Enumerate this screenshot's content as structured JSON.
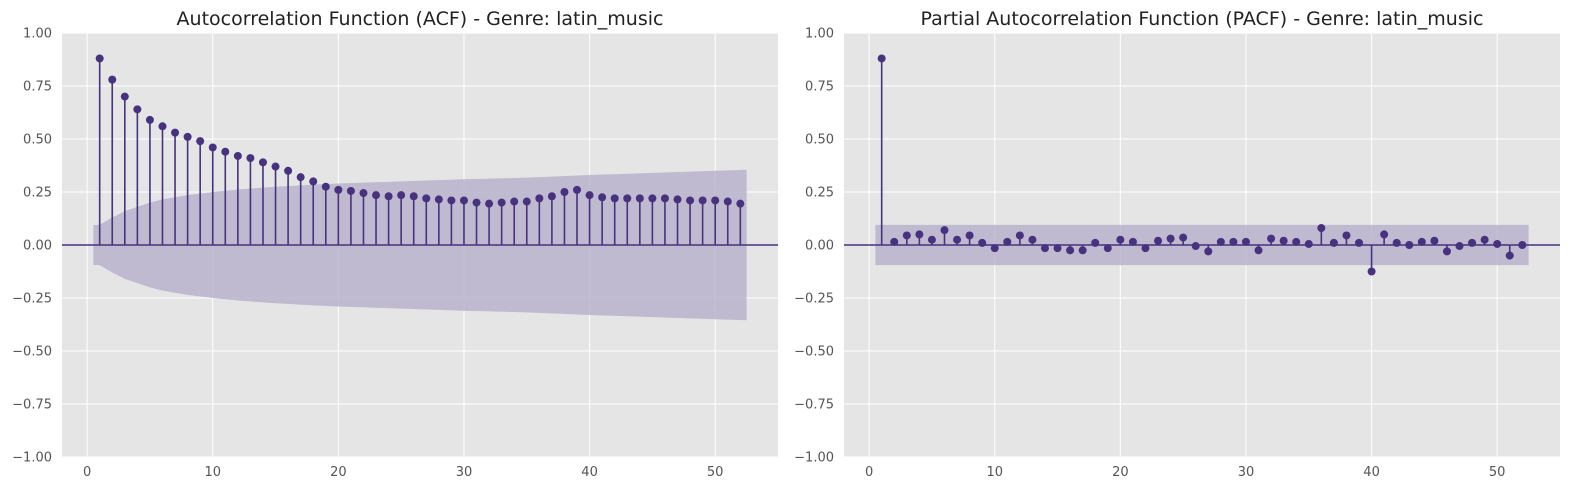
{
  "chart_data": [
    {
      "type": "scatter",
      "subtype": "stem",
      "title": "Autocorrelation Function (ACF) - Genre: latin_music",
      "xlabel": "",
      "ylabel": "",
      "xlim": [
        -2,
        55
      ],
      "ylim": [
        -1.0,
        1.0
      ],
      "xticks": [
        0,
        10,
        20,
        30,
        40,
        50
      ],
      "yticks": [
        -1.0,
        -0.75,
        -0.5,
        -0.25,
        0.0,
        0.25,
        0.5,
        0.75,
        1.0
      ],
      "xtick_labels": [
        "0",
        "10",
        "20",
        "30",
        "40",
        "50"
      ],
      "ytick_labels": [
        "−1.00",
        "−0.75",
        "−0.50",
        "−0.25",
        "0.00",
        "0.25",
        "0.50",
        "0.75",
        "1.00"
      ],
      "grid": true,
      "colors": {
        "marker": "#46327e",
        "band": "#b9b3cc",
        "background": "#e5e5e5",
        "grid": "#ffffff"
      },
      "x": [
        1,
        2,
        3,
        4,
        5,
        6,
        7,
        8,
        9,
        10,
        11,
        12,
        13,
        14,
        15,
        16,
        17,
        18,
        19,
        20,
        21,
        22,
        23,
        24,
        25,
        26,
        27,
        28,
        29,
        30,
        31,
        32,
        33,
        34,
        35,
        36,
        37,
        38,
        39,
        40,
        41,
        42,
        43,
        44,
        45,
        46,
        47,
        48,
        49,
        50,
        51,
        52
      ],
      "values": [
        0.88,
        0.78,
        0.7,
        0.64,
        0.59,
        0.56,
        0.53,
        0.51,
        0.49,
        0.46,
        0.44,
        0.42,
        0.41,
        0.39,
        0.37,
        0.35,
        0.32,
        0.3,
        0.275,
        0.26,
        0.255,
        0.245,
        0.235,
        0.23,
        0.235,
        0.23,
        0.22,
        0.215,
        0.21,
        0.21,
        0.2,
        0.195,
        0.2,
        0.205,
        0.205,
        0.22,
        0.23,
        0.25,
        0.26,
        0.235,
        0.225,
        0.22,
        0.22,
        0.22,
        0.22,
        0.22,
        0.215,
        0.21,
        0.21,
        0.21,
        0.205,
        0.195
      ],
      "confidence_band": {
        "x": [
          0.5,
          1,
          2,
          3,
          4,
          5,
          6,
          7,
          8,
          10,
          12,
          15,
          18,
          20,
          25,
          30,
          35,
          40,
          45,
          50,
          52.5
        ],
        "upper": [
          0.095,
          0.095,
          0.13,
          0.16,
          0.18,
          0.2,
          0.215,
          0.225,
          0.235,
          0.25,
          0.262,
          0.275,
          0.285,
          0.29,
          0.3,
          0.31,
          0.318,
          0.33,
          0.34,
          0.35,
          0.355
        ]
      }
    },
    {
      "type": "scatter",
      "subtype": "stem",
      "title": "Partial Autocorrelation Function (PACF) - Genre: latin_music",
      "xlabel": "",
      "ylabel": "",
      "xlim": [
        -2,
        55
      ],
      "ylim": [
        -1.0,
        1.0
      ],
      "xticks": [
        0,
        10,
        20,
        30,
        40,
        50
      ],
      "yticks": [
        -1.0,
        -0.75,
        -0.5,
        -0.25,
        0.0,
        0.25,
        0.5,
        0.75,
        1.0
      ],
      "xtick_labels": [
        "0",
        "10",
        "20",
        "30",
        "40",
        "50"
      ],
      "ytick_labels": [
        "−1.00",
        "−0.75",
        "−0.50",
        "−0.25",
        "0.00",
        "0.25",
        "0.50",
        "0.75",
        "1.00"
      ],
      "grid": true,
      "colors": {
        "marker": "#46327e",
        "band": "#b9b3cc",
        "background": "#e5e5e5",
        "grid": "#ffffff"
      },
      "x": [
        1,
        2,
        3,
        4,
        5,
        6,
        7,
        8,
        9,
        10,
        11,
        12,
        13,
        14,
        15,
        16,
        17,
        18,
        19,
        20,
        21,
        22,
        23,
        24,
        25,
        26,
        27,
        28,
        29,
        30,
        31,
        32,
        33,
        34,
        35,
        36,
        37,
        38,
        39,
        40,
        41,
        42,
        43,
        44,
        45,
        46,
        47,
        48,
        49,
        50,
        51,
        52
      ],
      "values": [
        0.88,
        0.015,
        0.045,
        0.05,
        0.025,
        0.07,
        0.025,
        0.045,
        0.01,
        -0.015,
        0.015,
        0.045,
        0.025,
        -0.015,
        -0.015,
        -0.025,
        -0.025,
        0.01,
        -0.015,
        0.025,
        0.015,
        -0.015,
        0.02,
        0.03,
        0.035,
        -0.005,
        -0.03,
        0.015,
        0.015,
        0.015,
        -0.025,
        0.03,
        0.02,
        0.015,
        0.005,
        0.08,
        0.01,
        0.045,
        0.01,
        -0.125,
        0.05,
        0.01,
        0.0,
        0.015,
        0.02,
        -0.03,
        -0.005,
        0.01,
        0.025,
        0.005,
        -0.05,
        0.0
      ],
      "confidence_band": {
        "x": [
          0.5,
          52.5
        ],
        "upper": [
          0.095,
          0.095
        ]
      }
    }
  ]
}
